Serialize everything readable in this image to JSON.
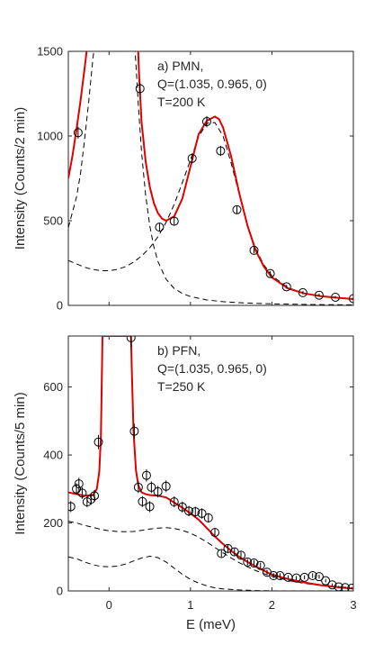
{
  "chart_data": [
    {
      "type": "scatter",
      "panel": "a",
      "annotation": [
        "a) PMN,",
        "Q=(1.035, 0.965, 0)",
        "T=200 K"
      ],
      "ylabel": "Intensity (Counts/2 min)",
      "xlabel": "",
      "xlim": [
        -0.5,
        3
      ],
      "ylim": [
        0,
        1500
      ],
      "xticks": [
        0,
        1,
        2,
        3
      ],
      "yticks": [
        0,
        500,
        1000,
        1500
      ],
      "x_tick_labels_shown": false,
      "grid": false,
      "points": [
        {
          "x": -0.38,
          "y": 1020,
          "err": 35
        },
        {
          "x": 0.38,
          "y": 1280,
          "err": 35
        },
        {
          "x": 0.62,
          "y": 462,
          "err": 22
        },
        {
          "x": 0.8,
          "y": 497,
          "err": 22
        },
        {
          "x": 1.02,
          "y": 868,
          "err": 30
        },
        {
          "x": 1.2,
          "y": 1085,
          "err": 33
        },
        {
          "x": 1.37,
          "y": 912,
          "err": 30
        },
        {
          "x": 1.57,
          "y": 565,
          "err": 24
        },
        {
          "x": 1.78,
          "y": 325,
          "err": 18
        },
        {
          "x": 1.98,
          "y": 188,
          "err": 14
        },
        {
          "x": 2.18,
          "y": 110,
          "err": 11
        },
        {
          "x": 2.38,
          "y": 75,
          "err": 9
        },
        {
          "x": 2.58,
          "y": 60,
          "err": 8
        },
        {
          "x": 2.78,
          "y": 48,
          "err": 7
        },
        {
          "x": 3.0,
          "y": 40,
          "err": 6
        }
      ],
      "fit": {
        "color": "#e00000",
        "x": [
          -0.5,
          -0.45,
          -0.4,
          -0.35,
          -0.3,
          -0.27,
          -0.25,
          0.35,
          0.37,
          0.4,
          0.45,
          0.5,
          0.55,
          0.6,
          0.65,
          0.7,
          0.8,
          0.9,
          1.0,
          1.1,
          1.2,
          1.3,
          1.35,
          1.4,
          1.5,
          1.6,
          1.7,
          1.8,
          1.9,
          2.0,
          2.2,
          2.4,
          2.6,
          2.8,
          3.0
        ],
        "y": [
          750,
          880,
          1040,
          1210,
          1400,
          1520,
          1600,
          1600,
          1350,
          1080,
          850,
          700,
          605,
          545,
          512,
          500,
          525,
          630,
          820,
          1010,
          1090,
          1115,
          1100,
          1050,
          880,
          660,
          470,
          325,
          230,
          165,
          100,
          70,
          55,
          45,
          37
        ]
      },
      "components": [
        {
          "style": "dashed",
          "x": [
            -0.5,
            -0.4,
            -0.3,
            -0.2,
            -0.1,
            0.0,
            0.1,
            0.2,
            0.3,
            0.4,
            0.5,
            0.6,
            0.7,
            0.8,
            0.9,
            1.0,
            1.1,
            1.2,
            1.3,
            1.4,
            1.5,
            1.6,
            1.7,
            1.8,
            1.9,
            2.0,
            2.2,
            2.4,
            2.6,
            2.8,
            3.0
          ],
          "y": [
            265,
            245,
            225,
            212,
            205,
            205,
            212,
            228,
            255,
            292,
            340,
            405,
            490,
            595,
            725,
            860,
            995,
            1075,
            1080,
            1000,
            840,
            655,
            475,
            335,
            240,
            175,
            105,
            70,
            53,
            43,
            36
          ]
        },
        {
          "style": "dashed",
          "x": [
            -0.5,
            -0.4,
            -0.35,
            -0.3,
            -0.25,
            -0.2,
            -0.15,
            0.3,
            0.33,
            0.36,
            0.4,
            0.45,
            0.5,
            0.55,
            0.6,
            0.7,
            0.8,
            0.9,
            1.0,
            1.2,
            1.4,
            1.6,
            1.8,
            2.0,
            2.5,
            3.0
          ],
          "y": [
            460,
            640,
            780,
            980,
            1200,
            1450,
            1650,
            1650,
            1420,
            1180,
            900,
            650,
            470,
            345,
            260,
            155,
            100,
            70,
            52,
            32,
            22,
            16,
            12,
            9,
            5,
            3
          ]
        }
      ]
    },
    {
      "type": "scatter",
      "panel": "b",
      "annotation": [
        "b) PFN,",
        "Q=(1.035, 0.965, 0)",
        "T=250 K"
      ],
      "ylabel": "Intensity (Counts/5 min)",
      "xlabel": "E (meV)",
      "xlim": [
        -0.5,
        3
      ],
      "ylim": [
        0,
        750
      ],
      "xticks": [
        0,
        1,
        2,
        3
      ],
      "yticks": [
        0,
        200,
        400,
        600
      ],
      "grid": false,
      "points": [
        {
          "x": -0.47,
          "y": 248,
          "err": 16
        },
        {
          "x": -0.4,
          "y": 300,
          "err": 17
        },
        {
          "x": -0.37,
          "y": 315,
          "err": 18
        },
        {
          "x": -0.33,
          "y": 288,
          "err": 17
        },
        {
          "x": -0.27,
          "y": 262,
          "err": 16
        },
        {
          "x": -0.22,
          "y": 270,
          "err": 16
        },
        {
          "x": -0.18,
          "y": 280,
          "err": 17
        },
        {
          "x": -0.13,
          "y": 438,
          "err": 21
        },
        {
          "x": 0.27,
          "y": 745,
          "err": 27
        },
        {
          "x": 0.31,
          "y": 470,
          "err": 22
        },
        {
          "x": 0.36,
          "y": 305,
          "err": 17
        },
        {
          "x": 0.41,
          "y": 263,
          "err": 16
        },
        {
          "x": 0.46,
          "y": 340,
          "err": 18
        },
        {
          "x": 0.5,
          "y": 248,
          "err": 16
        },
        {
          "x": 0.52,
          "y": 305,
          "err": 17
        },
        {
          "x": 0.6,
          "y": 292,
          "err": 17
        },
        {
          "x": 0.7,
          "y": 308,
          "err": 17
        },
        {
          "x": 0.8,
          "y": 262,
          "err": 16
        },
        {
          "x": 0.9,
          "y": 247,
          "err": 16
        },
        {
          "x": 0.98,
          "y": 235,
          "err": 15
        },
        {
          "x": 1.06,
          "y": 233,
          "err": 15
        },
        {
          "x": 1.14,
          "y": 228,
          "err": 15
        },
        {
          "x": 1.22,
          "y": 215,
          "err": 14
        },
        {
          "x": 1.3,
          "y": 172,
          "err": 13
        },
        {
          "x": 1.38,
          "y": 110,
          "err": 10
        },
        {
          "x": 1.46,
          "y": 125,
          "err": 11
        },
        {
          "x": 1.54,
          "y": 115,
          "err": 10
        },
        {
          "x": 1.62,
          "y": 105,
          "err": 10
        },
        {
          "x": 1.7,
          "y": 85,
          "err": 9
        },
        {
          "x": 1.78,
          "y": 82,
          "err": 9
        },
        {
          "x": 1.86,
          "y": 75,
          "err": 8
        },
        {
          "x": 1.94,
          "y": 55,
          "err": 7
        },
        {
          "x": 2.02,
          "y": 45,
          "err": 7
        },
        {
          "x": 2.1,
          "y": 45,
          "err": 7
        },
        {
          "x": 2.2,
          "y": 40,
          "err": 6
        },
        {
          "x": 2.3,
          "y": 38,
          "err": 6
        },
        {
          "x": 2.4,
          "y": 40,
          "err": 6
        },
        {
          "x": 2.5,
          "y": 45,
          "err": 7
        },
        {
          "x": 2.58,
          "y": 42,
          "err": 6
        },
        {
          "x": 2.66,
          "y": 30,
          "err": 5
        },
        {
          "x": 2.74,
          "y": 18,
          "err": 4
        },
        {
          "x": 2.82,
          "y": 12,
          "err": 3
        },
        {
          "x": 2.9,
          "y": 10,
          "err": 3
        },
        {
          "x": 2.98,
          "y": 8,
          "err": 3
        }
      ],
      "fit": {
        "color": "#e00000",
        "x": [
          -0.5,
          -0.4,
          -0.3,
          -0.2,
          -0.15,
          -0.12,
          -0.1,
          -0.09,
          -0.08,
          0.27,
          0.28,
          0.3,
          0.33,
          0.36,
          0.4,
          0.45,
          0.5,
          0.6,
          0.7,
          0.8,
          0.9,
          1.0,
          1.1,
          1.2,
          1.3,
          1.4,
          1.5,
          1.6,
          1.7,
          1.8,
          1.9,
          2.0,
          2.2,
          2.4,
          2.6,
          2.8,
          3.0
        ],
        "y": [
          290,
          285,
          280,
          282,
          300,
          350,
          450,
          600,
          750,
          750,
          650,
          470,
          355,
          310,
          290,
          285,
          282,
          280,
          275,
          260,
          245,
          228,
          210,
          185,
          160,
          138,
          118,
          100,
          85,
          72,
          60,
          48,
          35,
          25,
          17,
          11,
          7
        ]
      },
      "components": [
        {
          "style": "dashed",
          "x": [
            -0.5,
            -0.4,
            -0.3,
            -0.2,
            -0.1,
            0.0,
            0.1,
            0.2,
            0.3,
            0.4,
            0.5,
            0.6,
            0.7,
            0.8,
            0.9,
            1.0,
            1.1,
            1.2,
            1.3,
            1.4,
            1.5,
            1.6,
            1.7,
            1.8,
            1.9,
            2.0,
            2.2,
            2.4,
            2.6,
            2.8,
            3.0
          ],
          "y": [
            205,
            200,
            193,
            187,
            181,
            177,
            175,
            174,
            175,
            178,
            182,
            185,
            186,
            184,
            178,
            170,
            158,
            144,
            128,
            112,
            97,
            83,
            71,
            60,
            51,
            43,
            31,
            22,
            16,
            11,
            8
          ]
        },
        {
          "style": "dashed",
          "x": [
            -0.5,
            -0.4,
            -0.3,
            -0.2,
            -0.1,
            0.0,
            0.1,
            0.2,
            0.3,
            0.4,
            0.5,
            0.6,
            0.7,
            0.8,
            0.9,
            1.0,
            1.1,
            1.2,
            1.3,
            1.4,
            1.6,
            1.8,
            2.0,
            2.4,
            3.0
          ],
          "y": [
            100,
            95,
            85,
            77,
            72,
            71,
            73,
            79,
            88,
            97,
            102,
            98,
            85,
            67,
            49,
            34,
            23,
            15,
            9,
            6,
            3,
            1,
            0,
            0,
            0
          ]
        }
      ]
    }
  ]
}
